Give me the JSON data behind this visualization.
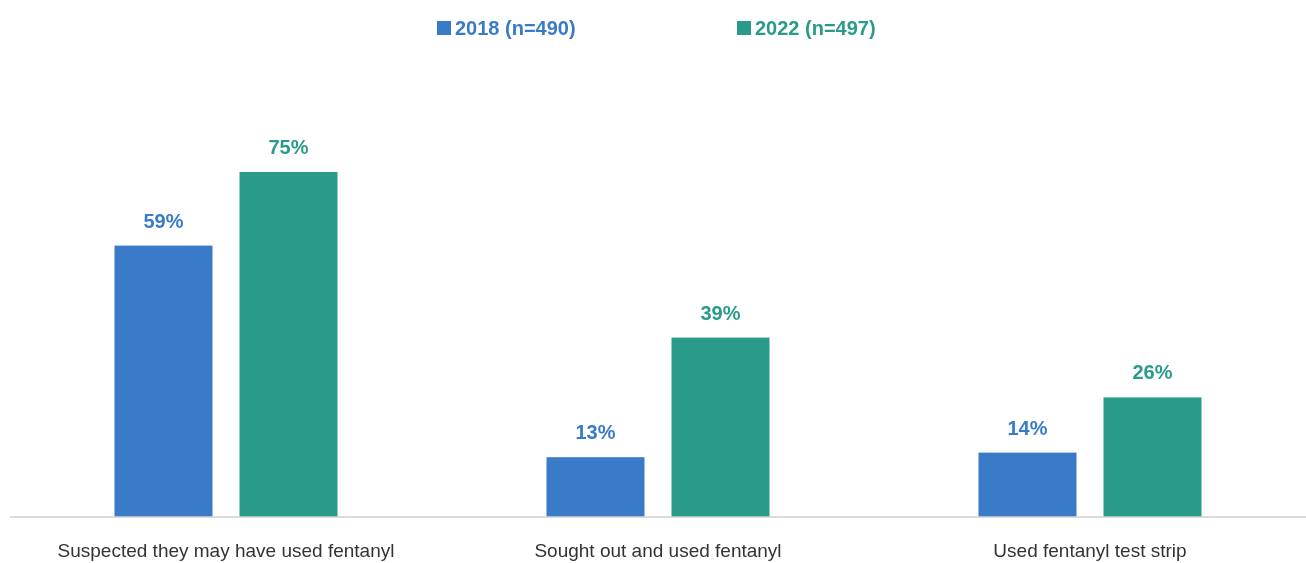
{
  "chart_data": {
    "type": "bar",
    "categories": [
      "Suspected they may have used fentanyl",
      "Sought out and used fentanyl",
      "Used fentanyl test strip"
    ],
    "series": [
      {
        "name": "2018 (n=490)",
        "color": "#3a7bc8",
        "values": [
          59,
          13,
          14
        ],
        "value_labels": [
          "59%",
          "13%",
          "14%"
        ]
      },
      {
        "name": "2022 (n=497)",
        "color": "#2a9a8a",
        "values": [
          75,
          39,
          26
        ],
        "value_labels": [
          "75%",
          "39%",
          "26%"
        ]
      }
    ],
    "legend": "top"
  }
}
